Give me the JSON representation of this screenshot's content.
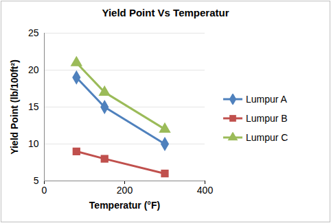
{
  "chart_data": {
    "type": "line",
    "title": "Yield Point Vs Temperatur",
    "x_label": "Temperatur (°F)",
    "y_label": "Yield Point (lb/100ft²)",
    "xlim": [
      0,
      400
    ],
    "xticks": [
      0,
      200,
      400
    ],
    "ylim": [
      5,
      25
    ],
    "yticks": [
      5,
      10,
      15,
      20,
      25
    ],
    "grid": true,
    "legend": "right",
    "series": [
      {
        "name": "Lumpur A",
        "color": "#4f81bd",
        "marker": "diamond",
        "x": [
          80,
          150,
          300
        ],
        "values": [
          19,
          15,
          10
        ]
      },
      {
        "name": "Lumpur B",
        "color": "#c0504d",
        "marker": "square",
        "x": [
          80,
          150,
          300
        ],
        "values": [
          9,
          8,
          6
        ]
      },
      {
        "name": "Lumpur C",
        "color": "#9bbb59",
        "marker": "triangle",
        "x": [
          80,
          150,
          300
        ],
        "values": [
          21,
          17,
          12
        ]
      }
    ]
  }
}
